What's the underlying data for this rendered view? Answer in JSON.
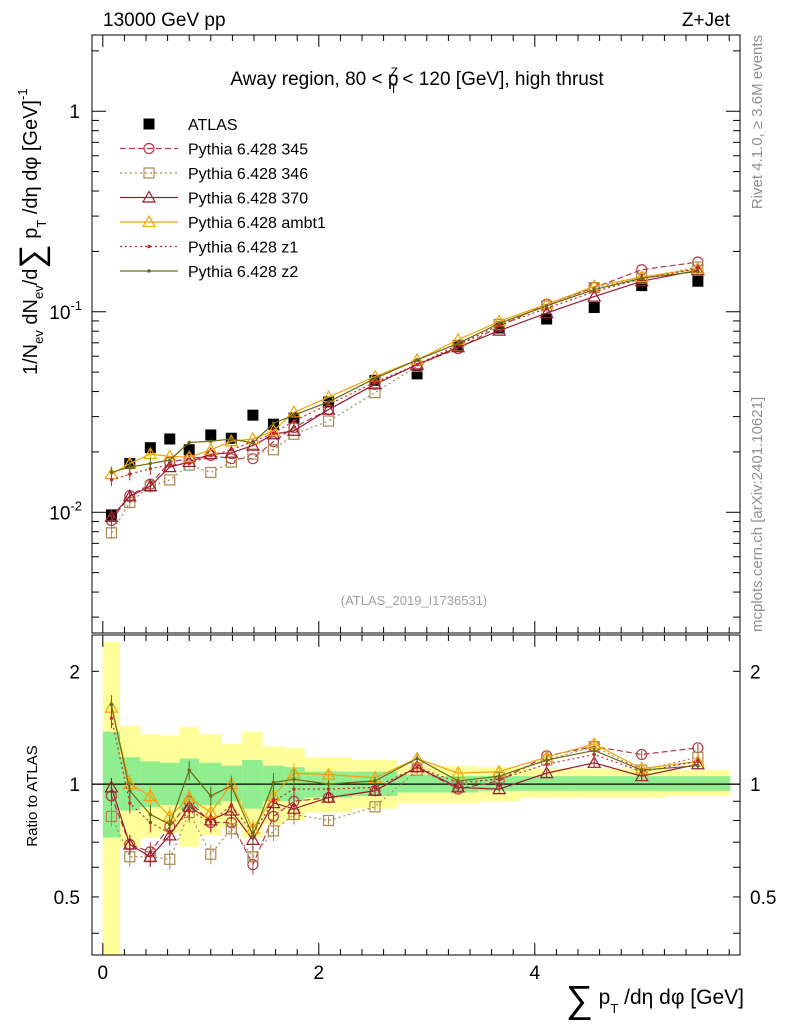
{
  "header": {
    "left": "13000 GeV pp",
    "right": "Z+Jet"
  },
  "side_labels": {
    "rivet": "Rivet 4.1.0, ≥ 3.6M events",
    "mcplots": "mcplots.cern.ch [arXiv:2401.10621]"
  },
  "colors": {
    "ATLAS": "#000000",
    "p345": "#b03a48",
    "p346": "#a88950",
    "p370": "#9b1b2e",
    "ambt1": "#f0a30a",
    "z1": "#c62828",
    "z2": "#6b6b12",
    "band_inner": "#90ee90",
    "band_outer": "#ffff99"
  },
  "chart_data": [
    {
      "type": "line",
      "title": "Away region, 80 < p_T^Z < 120 [GeV], high thrust",
      "title_parts": {
        "a": "Away region, 80 < p",
        "sub": "T",
        "sup": "Z",
        "b": " < 120 [GeV], high thrust"
      },
      "ylabel": "1/N_ev dN_ev/d∑ p_T /dη dφ [GeV]^-1",
      "ylabel_parts": {
        "a": "1/N",
        "sub1": "ev",
        "b": " dN",
        "sub2": "ev",
        "c": "/d",
        "sum": "∑",
        "d": " p",
        "sub3": "T",
        "e": " /dη dφ  [GeV]",
        "sup": "-1"
      },
      "yscale": "log",
      "xlim": [
        -0.1,
        5.9
      ],
      "ylim": [
        0.0025,
        2.4
      ],
      "y_ticks": [
        {
          "value": 0.01,
          "base": "10",
          "exp": "-2"
        },
        {
          "value": 0.1,
          "base": "10",
          "exp": "-1"
        },
        {
          "value": 1,
          "base": "1",
          "exp": ""
        }
      ],
      "watermark": "(ATLAS_2019_I1736531)",
      "x": [
        0.08,
        0.25,
        0.44,
        0.62,
        0.8,
        1.0,
        1.19,
        1.39,
        1.58,
        1.77,
        2.09,
        2.52,
        2.91,
        3.29,
        3.67,
        4.11,
        4.55,
        4.99,
        5.51
      ],
      "series": [
        {
          "name": "ATLAS",
          "key": "ATLAS",
          "values": [
            0.0097,
            0.0175,
            0.021,
            0.0232,
            0.0205,
            0.0243,
            0.0234,
            0.0305,
            0.0275,
            0.0295,
            0.0355,
            0.0455,
            0.049,
            0.068,
            0.083,
            0.092,
            0.105,
            0.135,
            0.142
          ]
        },
        {
          "name": "Pythia 6.428 345",
          "key": "p345",
          "values": [
            0.0091,
            0.0121,
            0.0138,
            0.0178,
            0.0185,
            0.0192,
            0.0185,
            0.0185,
            0.0225,
            0.0265,
            0.0325,
            0.0435,
            0.0545,
            0.0655,
            0.0845,
            0.109,
            0.132,
            0.162,
            0.177
          ]
        },
        {
          "name": "Pythia 6.428 346",
          "key": "p346",
          "values": [
            0.0079,
            0.0112,
            0.0135,
            0.0145,
            0.0172,
            0.0158,
            0.0178,
            0.0195,
            0.0205,
            0.0245,
            0.0285,
            0.0395,
            0.0535,
            0.0675,
            0.0865,
            0.107,
            0.132,
            0.147,
            0.167
          ]
        },
        {
          "name": "Pythia 6.428 370",
          "key": "p370",
          "values": [
            0.0095,
            0.012,
            0.0135,
            0.0168,
            0.0178,
            0.0195,
            0.0198,
            0.0215,
            0.0245,
            0.0255,
            0.0325,
            0.0435,
            0.0545,
            0.0665,
            0.0805,
            0.0985,
            0.119,
            0.142,
            0.161
          ]
        },
        {
          "name": "Pythia 6.428 ambt1",
          "key": "ambt1",
          "values": [
            0.0155,
            0.0175,
            0.0195,
            0.019,
            0.0188,
            0.0205,
            0.0226,
            0.0232,
            0.0255,
            0.0315,
            0.0375,
            0.0475,
            0.0575,
            0.0725,
            0.0895,
            0.109,
            0.134,
            0.149,
            0.164
          ]
        },
        {
          "name": "Pythia 6.428 z1",
          "key": "z1",
          "values": [
            0.0145,
            0.0155,
            0.0165,
            0.0172,
            0.0175,
            0.0192,
            0.0205,
            0.0225,
            0.0248,
            0.0285,
            0.0345,
            0.0445,
            0.0545,
            0.0685,
            0.0855,
            0.104,
            0.126,
            0.146,
            0.164
          ]
        },
        {
          "name": "Pythia 6.428 z2",
          "key": "z2",
          "values": [
            0.0158,
            0.0168,
            0.0175,
            0.0182,
            0.0223,
            0.0226,
            0.0232,
            0.0222,
            0.0278,
            0.0305,
            0.0355,
            0.0465,
            0.0575,
            0.0695,
            0.0875,
            0.107,
            0.129,
            0.147,
            0.159
          ]
        }
      ]
    },
    {
      "type": "line",
      "title": "",
      "ylabel": "Ratio to ATLAS",
      "xlabel": "∑ p_T /dη dφ [GeV]",
      "xlabel_parts": {
        "sum": "∑",
        "a": " p",
        "sub": "T",
        "b": " /dη dφ [GeV]"
      },
      "yscale": "log",
      "xlim": [
        -0.1,
        5.9
      ],
      "ylim": [
        0.35,
        2.5
      ],
      "x_ticks": [
        0,
        2,
        4
      ],
      "y_ticks": [
        0.5,
        1,
        2
      ],
      "x": [
        0.08,
        0.25,
        0.44,
        0.62,
        0.8,
        1.0,
        1.19,
        1.39,
        1.58,
        1.77,
        2.09,
        2.52,
        2.91,
        3.29,
        3.67,
        4.11,
        4.55,
        4.99,
        5.51
      ],
      "band_edges": [
        0,
        0.16,
        0.35,
        0.53,
        0.71,
        0.89,
        1.1,
        1.29,
        1.48,
        1.68,
        1.87,
        2.31,
        2.73,
        3.1,
        3.48,
        3.86,
        4.33,
        4.77,
        5.21,
        5.81
      ],
      "band_inner": [
        [
          0.72,
          1.38
        ],
        [
          0.85,
          1.18
        ],
        [
          0.87,
          1.15
        ],
        [
          0.88,
          1.14
        ],
        [
          0.85,
          1.17
        ],
        [
          0.88,
          1.14
        ],
        [
          0.9,
          1.12
        ],
        [
          0.86,
          1.16
        ],
        [
          0.9,
          1.12
        ],
        [
          0.9,
          1.11
        ],
        [
          0.92,
          1.08
        ],
        [
          0.93,
          1.08
        ],
        [
          0.95,
          1.06
        ],
        [
          0.95,
          1.05
        ],
        [
          0.96,
          1.05
        ],
        [
          0.96,
          1.05
        ],
        [
          0.96,
          1.05
        ],
        [
          0.96,
          1.05
        ],
        [
          0.96,
          1.05
        ]
      ],
      "band_outer": [
        [
          0.3,
          2.4
        ],
        [
          0.68,
          1.43
        ],
        [
          0.72,
          1.36
        ],
        [
          0.74,
          1.35
        ],
        [
          0.68,
          1.42
        ],
        [
          0.73,
          1.36
        ],
        [
          0.77,
          1.28
        ],
        [
          0.72,
          1.38
        ],
        [
          0.78,
          1.26
        ],
        [
          0.8,
          1.25
        ],
        [
          0.84,
          1.18
        ],
        [
          0.86,
          1.16
        ],
        [
          0.89,
          1.12
        ],
        [
          0.89,
          1.12
        ],
        [
          0.9,
          1.11
        ],
        [
          0.92,
          1.1
        ],
        [
          0.92,
          1.1
        ],
        [
          0.92,
          1.1
        ],
        [
          0.93,
          1.09
        ]
      ],
      "series": [
        {
          "name": "Pythia 6.428 345",
          "key": "p345",
          "values": [
            0.93,
            0.69,
            0.66,
            0.77,
            0.9,
            0.79,
            0.79,
            0.61,
            0.82,
            0.9,
            0.92,
            0.96,
            1.11,
            0.97,
            1.02,
            1.19,
            1.26,
            1.2,
            1.25
          ]
        },
        {
          "name": "Pythia 6.428 346",
          "key": "p346",
          "values": [
            0.82,
            0.64,
            0.64,
            0.63,
            0.84,
            0.65,
            0.76,
            0.64,
            0.75,
            0.83,
            0.8,
            0.87,
            1.09,
            0.99,
            1.04,
            1.16,
            1.26,
            1.09,
            1.18
          ]
        },
        {
          "name": "Pythia 6.428 370",
          "key": "p370",
          "values": [
            0.98,
            0.69,
            0.64,
            0.73,
            0.87,
            0.8,
            0.85,
            0.71,
            0.89,
            0.86,
            0.92,
            0.96,
            1.11,
            0.98,
            0.97,
            1.07,
            1.14,
            1.05,
            1.13
          ]
        },
        {
          "name": "Pythia 6.428 ambt1",
          "key": "ambt1",
          "values": [
            1.6,
            1.0,
            0.93,
            0.82,
            0.92,
            0.84,
            1.0,
            0.76,
            0.93,
            1.07,
            1.06,
            1.04,
            1.17,
            1.07,
            1.08,
            1.18,
            1.28,
            1.1,
            1.15
          ]
        },
        {
          "name": "Pythia 6.428 z1",
          "key": "z1",
          "values": [
            1.5,
            0.89,
            0.79,
            0.74,
            0.85,
            0.79,
            0.88,
            0.74,
            0.9,
            0.97,
            0.97,
            0.98,
            1.11,
            1.01,
            1.03,
            1.13,
            1.2,
            1.08,
            1.15
          ]
        },
        {
          "name": "Pythia 6.428 z2",
          "key": "z2",
          "values": [
            1.63,
            0.96,
            0.83,
            0.78,
            1.09,
            0.93,
            0.99,
            0.73,
            1.01,
            1.03,
            1.0,
            1.02,
            1.17,
            1.02,
            1.05,
            1.16,
            1.23,
            1.09,
            1.12
          ]
        }
      ]
    }
  ]
}
